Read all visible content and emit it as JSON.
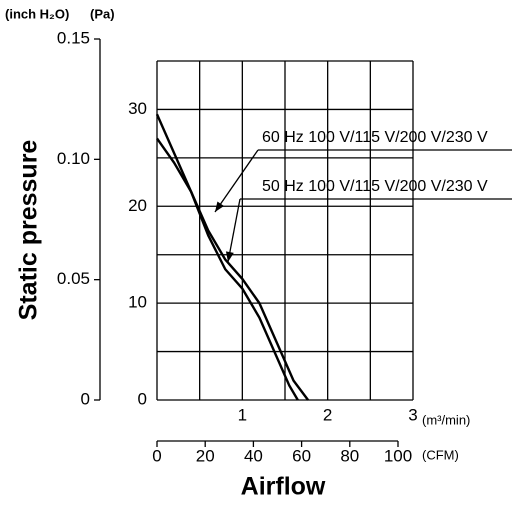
{
  "chart_data": {
    "type": "line",
    "y_label": "Static pressure",
    "x_label": "Airflow",
    "y_unit": "(Pa)",
    "y2_unit": "(inch H₂O)",
    "x_unit": "(m³/min)",
    "x2_unit": "(CFM)",
    "xlim": [
      0,
      3
    ],
    "xticks": [
      1,
      2,
      3
    ],
    "xgrid": [
      0,
      0.5,
      1,
      1.5,
      2,
      2.5,
      3
    ],
    "ylim": [
      0,
      35
    ],
    "yticks": [
      0,
      10,
      20,
      30
    ],
    "ygrid": [
      0,
      5,
      10,
      15,
      20,
      25,
      30,
      35
    ],
    "y2lim": [
      0,
      0.15
    ],
    "y2ticks": [
      0,
      0.05,
      {
        "value": 0.1,
        "label": "0.10"
      },
      0.15
    ],
    "x2lim": [
      0,
      100
    ],
    "x2ticks": [
      0,
      20,
      40,
      60,
      80,
      100
    ],
    "grid": true,
    "color": "#000000",
    "series": [
      {
        "name": "60 Hz 100 V/115 V/200 V/230 V",
        "x": [
          0,
          0.2,
          0.4,
          0.6,
          0.8,
          1.0,
          1.2,
          1.4,
          1.6,
          1.77
        ],
        "values": [
          29.5,
          25.5,
          21.5,
          17.5,
          14.5,
          12.5,
          10,
          6,
          2,
          0
        ]
      },
      {
        "name": "50 Hz 100 V/115 V/200 V/230 V",
        "x": [
          0,
          0.2,
          0.4,
          0.6,
          0.8,
          1.0,
          1.2,
          1.4,
          1.55,
          1.65
        ],
        "values": [
          27,
          24.5,
          21.5,
          17,
          13.5,
          11.5,
          8.5,
          4.5,
          1.5,
          0
        ]
      }
    ]
  }
}
